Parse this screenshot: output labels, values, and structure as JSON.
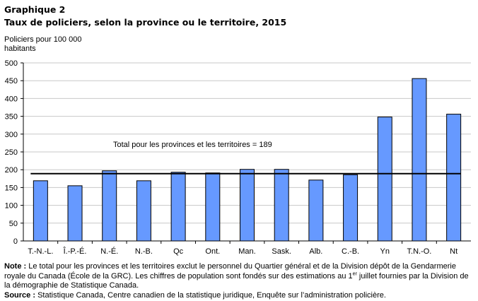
{
  "figure": {
    "number_line": "Graphique  2",
    "title": "Taux de policiers, selon la province ou le territoire,  2015",
    "y_unit_label": "Policiers pour 100 000 habitants"
  },
  "chart_data": {
    "type": "bar",
    "categories": [
      "T.-N.-L.",
      "Î.-P.-É.",
      "N.-É.",
      "N.-B.",
      "Qc",
      "Ont.",
      "Man.",
      "Sask.",
      "Alb.",
      "C.-B.",
      "Yn",
      "T.N.-O.",
      "Nt"
    ],
    "values": [
      169,
      155,
      197,
      169,
      193,
      191,
      201,
      201,
      171,
      186,
      348,
      456,
      356
    ],
    "ylabel": "Policiers pour 100 000 habitants",
    "ylim": [
      0,
      500
    ],
    "yticks": [
      0,
      50,
      100,
      150,
      200,
      250,
      300,
      350,
      400,
      450,
      500
    ],
    "grid": true,
    "bar_color": "#6699ff",
    "reference_line": {
      "value": 189,
      "label": "Total pour les provinces et les territoires = 189"
    }
  },
  "notes": {
    "note_label": "Note :",
    "note_text_1": " Le total pour les provinces et les territoires exclut le personnel du Quartier général et de la Division dépôt de la Gendarmerie royale du Canada (École de la GRC). Les chiffres de population sont fondés sur des estimations au 1",
    "note_sup": "er",
    "note_text_2": " juillet fournies par la Division de la démographie de Statistique Canada.",
    "source_label": "Source :",
    "source_text": " Statistique Canada, Centre canadien de la statistique juridique, Enquête sur l’administration policière."
  }
}
